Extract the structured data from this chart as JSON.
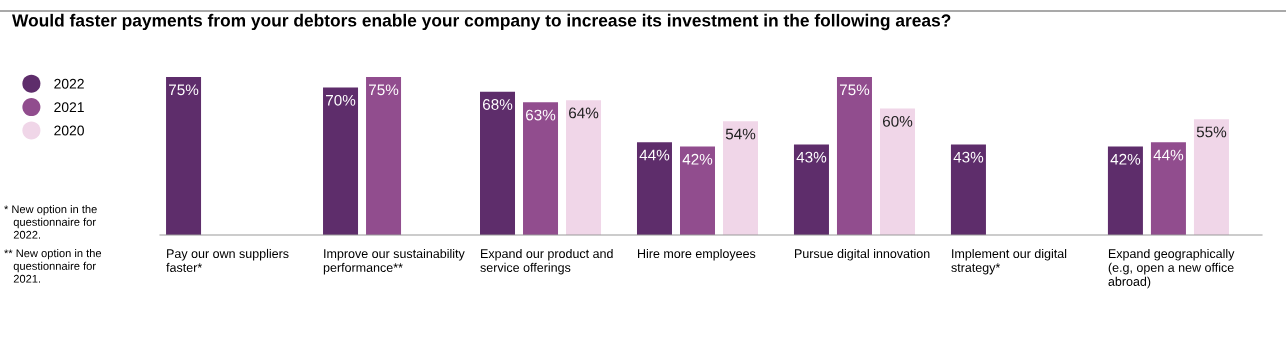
{
  "chart_data": {
    "type": "bar",
    "title": "Would faster payments from your debtors enable your company to increase its investment in the following areas?",
    "categories": [
      "Pay our own suppliers\nfaster*",
      "Improve our sustainability\nperformance**",
      "Expand our product and\nservice offerings",
      "Hire more employees",
      "Pursue digital innovation",
      "Implement our digital\nstrategy*",
      "Expand geographically\n(e.g, open a new office\nabroad)"
    ],
    "series": [
      {
        "name": "2022",
        "color": "#5e2d6b",
        "values": [
          75,
          70,
          68,
          44,
          43,
          43,
          42
        ],
        "value_labels": [
          "75%",
          "70%",
          "68%",
          "44%",
          "43%",
          "43%",
          "42%"
        ]
      },
      {
        "name": "2021",
        "color": "#914d8e",
        "values": [
          null,
          75,
          63,
          42,
          75,
          null,
          44
        ],
        "value_labels": [
          null,
          "75%",
          "63%",
          "42%",
          "75%",
          null,
          "44%"
        ]
      },
      {
        "name": "2020",
        "color": "#f0d6e8",
        "values": [
          null,
          null,
          64,
          54,
          60,
          null,
          55
        ],
        "value_labels": [
          null,
          null,
          "64%",
          "54%",
          "60%",
          null,
          "55%"
        ]
      }
    ],
    "legend": "left",
    "grid": false,
    "annotations": [
      "* New option in the\n   questionnaire for\n   2022.",
      "** New option in the\n   questionnaire for\n   2021."
    ]
  }
}
